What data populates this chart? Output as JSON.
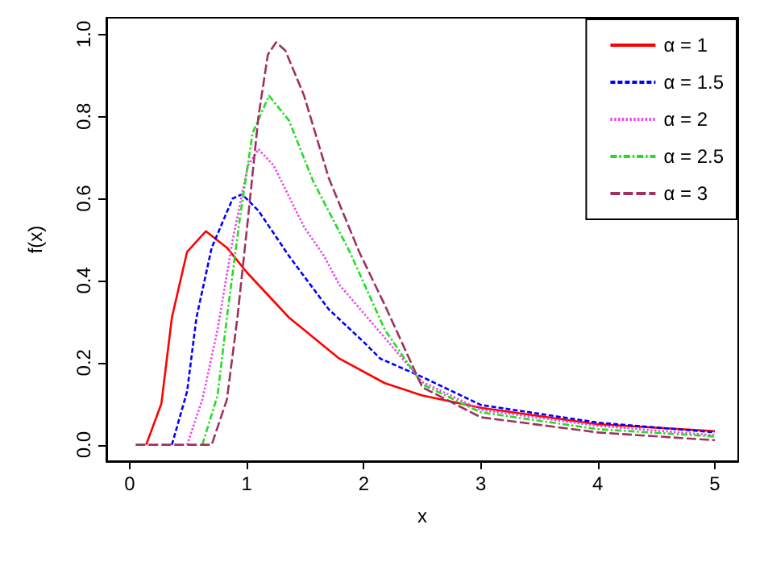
{
  "chart_data": {
    "type": "line",
    "xlabel": "x",
    "ylabel": "f(x)",
    "xlim": [
      -0.2,
      5.2
    ],
    "ylim": [
      -0.04,
      1.04
    ],
    "xticks": [
      0,
      1,
      2,
      3,
      4,
      5
    ],
    "yticks": [
      {
        "value": 0,
        "label": "0.0"
      },
      0.2,
      0.4,
      0.6,
      0.8,
      {
        "value": 1,
        "label": "1.0"
      }
    ],
    "grid": false,
    "legend": "top right",
    "marker": "none",
    "series": [
      {
        "name": "α = 1",
        "color": "#ff0000",
        "line_style": "solid",
        "x": [
          0.14,
          0.27,
          0.36,
          0.49,
          0.65,
          0.83,
          1.0,
          1.36,
          1.79,
          2.18,
          2.5,
          3,
          4,
          5
        ],
        "values": [
          0,
          0.1,
          0.31,
          0.47,
          0.52,
          0.48,
          0.42,
          0.31,
          0.21,
          0.15,
          0.12,
          0.09,
          0.05,
          0.033
        ]
      },
      {
        "name": "α = 1.5",
        "color": "#0000ff",
        "line_style": "dashed",
        "x": [
          0.36,
          0.49,
          0.57,
          0.7,
          0.88,
          0.96,
          1.1,
          1.36,
          1.7,
          2.0,
          2.14,
          2.5,
          3,
          4,
          5
        ],
        "values": [
          0,
          0.13,
          0.31,
          0.48,
          0.6,
          0.61,
          0.57,
          0.46,
          0.33,
          0.25,
          0.21,
          0.165,
          0.097,
          0.054,
          0.03
        ]
      },
      {
        "name": "α = 2",
        "color": "#ee44ee",
        "line_style": "dotted",
        "x": [
          0.49,
          0.62,
          0.75,
          0.88,
          1.01,
          1.1,
          1.23,
          1.49,
          1.66,
          1.79,
          2.18,
          2.5,
          3,
          4,
          5
        ],
        "values": [
          0,
          0.11,
          0.28,
          0.5,
          0.68,
          0.72,
          0.68,
          0.53,
          0.46,
          0.39,
          0.26,
          0.153,
          0.085,
          0.046,
          0.023
        ]
      },
      {
        "name": "α = 2.5",
        "color": "#22dd22",
        "line_style": "dashdot",
        "x": [
          0.62,
          0.75,
          0.83,
          0.94,
          1.05,
          1.19,
          1.36,
          1.57,
          1.88,
          2.18,
          2.5,
          3,
          4,
          5
        ],
        "values": [
          0,
          0.12,
          0.31,
          0.55,
          0.76,
          0.85,
          0.79,
          0.64,
          0.47,
          0.28,
          0.147,
          0.079,
          0.038,
          0.02
        ]
      },
      {
        "name": "α = 3",
        "color": "#a03060",
        "line_style": "longdash",
        "x": [
          0.05,
          0.7,
          0.83,
          0.92,
          1.01,
          1.1,
          1.18,
          1.25,
          1.33,
          1.49,
          1.7,
          1.96,
          2.18,
          2.5,
          3,
          4,
          5
        ],
        "values": [
          0,
          0,
          0.11,
          0.31,
          0.55,
          0.8,
          0.95,
          0.98,
          0.96,
          0.85,
          0.65,
          0.47,
          0.34,
          0.14,
          0.067,
          0.03,
          0.011
        ]
      }
    ]
  }
}
